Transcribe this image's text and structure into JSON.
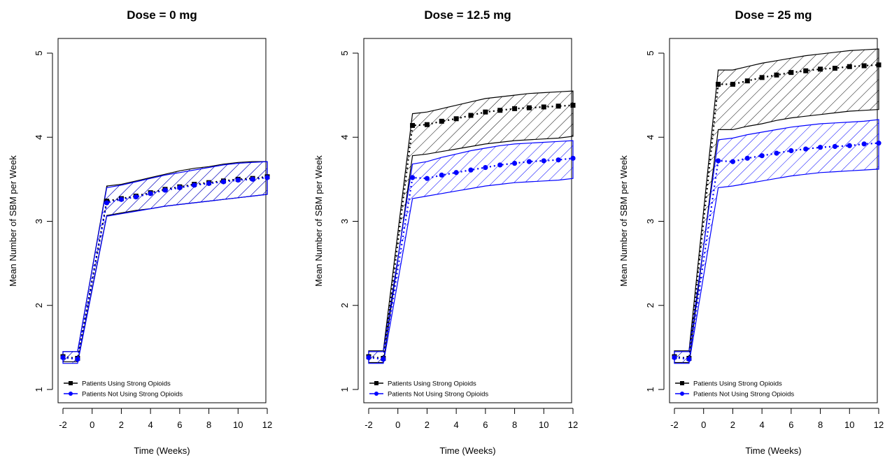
{
  "colors": {
    "strong": "#000000",
    "not_strong": "#0000ff"
  },
  "chart_data": [
    {
      "type": "line",
      "title": "Dose = 0 mg",
      "xlabel": "Time (Weeks)",
      "ylabel": "Mean Number of SBM per Week",
      "xlim": [
        -2,
        12
      ],
      "ylim": [
        1,
        5
      ],
      "xticks": [
        "-2",
        "0",
        "2",
        "4",
        "6",
        "8",
        "10",
        "12"
      ],
      "yticks": [
        "1",
        "2",
        "3",
        "4",
        "5"
      ],
      "legend": "bottom-left",
      "series": [
        {
          "name": "Patients Using Strong Opioids",
          "marker": "square",
          "x": [
            -2,
            -1,
            1,
            2,
            3,
            4,
            5,
            6,
            7,
            8,
            9,
            10,
            11,
            12
          ],
          "y": [
            1.39,
            1.37,
            3.24,
            3.27,
            3.3,
            3.34,
            3.38,
            3.41,
            3.44,
            3.46,
            3.48,
            3.5,
            3.51,
            3.53
          ],
          "lower": [
            1.33,
            1.33,
            3.07,
            3.1,
            3.13,
            3.15,
            3.18,
            3.2,
            3.22,
            3.24,
            3.26,
            3.28,
            3.3,
            3.32
          ],
          "upper": [
            1.45,
            1.45,
            3.42,
            3.44,
            3.48,
            3.52,
            3.56,
            3.6,
            3.63,
            3.65,
            3.68,
            3.7,
            3.71,
            3.71
          ]
        },
        {
          "name": "Patients Not Using Strong Opioids",
          "marker": "circle",
          "x": [
            -2,
            -1,
            1,
            2,
            3,
            4,
            5,
            6,
            7,
            8,
            9,
            10,
            11,
            12
          ],
          "y": [
            1.38,
            1.36,
            3.22,
            3.26,
            3.29,
            3.33,
            3.37,
            3.4,
            3.43,
            3.45,
            3.47,
            3.49,
            3.5,
            3.52
          ],
          "lower": [
            1.31,
            1.31,
            3.06,
            3.09,
            3.12,
            3.15,
            3.18,
            3.2,
            3.22,
            3.24,
            3.26,
            3.28,
            3.3,
            3.32
          ],
          "upper": [
            1.45,
            1.45,
            3.4,
            3.43,
            3.47,
            3.51,
            3.55,
            3.58,
            3.61,
            3.64,
            3.67,
            3.69,
            3.7,
            3.71
          ]
        }
      ]
    },
    {
      "type": "line",
      "title": "Dose = 12.5 mg",
      "xlabel": "Time (Weeks)",
      "ylabel": "Mean Number of SBM per Week",
      "xlim": [
        -2,
        12
      ],
      "ylim": [
        1,
        5
      ],
      "xticks": [
        "-2",
        "0",
        "2",
        "4",
        "6",
        "8",
        "10",
        "12"
      ],
      "yticks": [
        "1",
        "2",
        "3",
        "4",
        "5"
      ],
      "legend": "bottom-left",
      "series": [
        {
          "name": "Patients Using Strong Opioids",
          "marker": "square",
          "x": [
            -2,
            -1,
            1,
            2,
            3,
            4,
            5,
            6,
            7,
            8,
            9,
            10,
            11,
            12
          ],
          "y": [
            1.39,
            1.37,
            4.14,
            4.15,
            4.19,
            4.22,
            4.26,
            4.3,
            4.32,
            4.34,
            4.35,
            4.36,
            4.37,
            4.38
          ],
          "lower": [
            1.32,
            1.32,
            3.78,
            3.8,
            3.83,
            3.86,
            3.89,
            3.92,
            3.94,
            3.96,
            3.97,
            3.98,
            3.99,
            4.01
          ],
          "upper": [
            1.46,
            1.46,
            4.28,
            4.3,
            4.34,
            4.38,
            4.42,
            4.46,
            4.48,
            4.5,
            4.52,
            4.53,
            4.54,
            4.55
          ]
        },
        {
          "name": "Patients Not Using Strong Opioids",
          "marker": "circle",
          "x": [
            -2,
            -1,
            1,
            2,
            3,
            4,
            5,
            6,
            7,
            8,
            9,
            10,
            11,
            12
          ],
          "y": [
            1.38,
            1.36,
            3.52,
            3.51,
            3.55,
            3.58,
            3.61,
            3.64,
            3.67,
            3.69,
            3.71,
            3.72,
            3.73,
            3.75
          ],
          "lower": [
            1.31,
            1.31,
            3.27,
            3.3,
            3.33,
            3.36,
            3.39,
            3.42,
            3.44,
            3.46,
            3.47,
            3.48,
            3.49,
            3.51
          ],
          "upper": [
            1.45,
            1.45,
            3.68,
            3.71,
            3.76,
            3.8,
            3.84,
            3.87,
            3.9,
            3.92,
            3.93,
            3.94,
            3.95,
            3.96
          ]
        }
      ]
    },
    {
      "type": "line",
      "title": "Dose = 25 mg",
      "xlabel": "Time (Weeks)",
      "ylabel": "Mean Number of SBM per Week",
      "xlim": [
        -2,
        12
      ],
      "ylim": [
        1,
        5
      ],
      "xticks": [
        "-2",
        "0",
        "2",
        "4",
        "6",
        "8",
        "10",
        "12"
      ],
      "yticks": [
        "1",
        "2",
        "3",
        "4",
        "5"
      ],
      "legend": "bottom-left",
      "series": [
        {
          "name": "Patients Using Strong Opioids",
          "marker": "square",
          "x": [
            -2,
            -1,
            1,
            2,
            3,
            4,
            5,
            6,
            7,
            8,
            9,
            10,
            11,
            12
          ],
          "y": [
            1.39,
            1.37,
            4.63,
            4.63,
            4.67,
            4.71,
            4.74,
            4.77,
            4.79,
            4.81,
            4.82,
            4.84,
            4.85,
            4.86
          ],
          "lower": [
            1.32,
            1.32,
            4.09,
            4.09,
            4.13,
            4.16,
            4.2,
            4.23,
            4.25,
            4.27,
            4.29,
            4.31,
            4.32,
            4.33
          ],
          "upper": [
            1.46,
            1.46,
            4.8,
            4.8,
            4.84,
            4.88,
            4.91,
            4.94,
            4.97,
            4.99,
            5.01,
            5.03,
            5.04,
            5.05
          ]
        },
        {
          "name": "Patients Not Using Strong Opioids",
          "marker": "circle",
          "x": [
            -2,
            -1,
            1,
            2,
            3,
            4,
            5,
            6,
            7,
            8,
            9,
            10,
            11,
            12
          ],
          "y": [
            1.38,
            1.36,
            3.72,
            3.71,
            3.75,
            3.78,
            3.81,
            3.84,
            3.86,
            3.88,
            3.89,
            3.9,
            3.92,
            3.93
          ],
          "lower": [
            1.31,
            1.31,
            3.4,
            3.42,
            3.45,
            3.48,
            3.51,
            3.54,
            3.56,
            3.58,
            3.59,
            3.6,
            3.61,
            3.62
          ],
          "upper": [
            1.45,
            1.45,
            3.97,
            3.99,
            4.03,
            4.06,
            4.09,
            4.12,
            4.14,
            4.16,
            4.17,
            4.18,
            4.19,
            4.21
          ]
        }
      ]
    }
  ]
}
